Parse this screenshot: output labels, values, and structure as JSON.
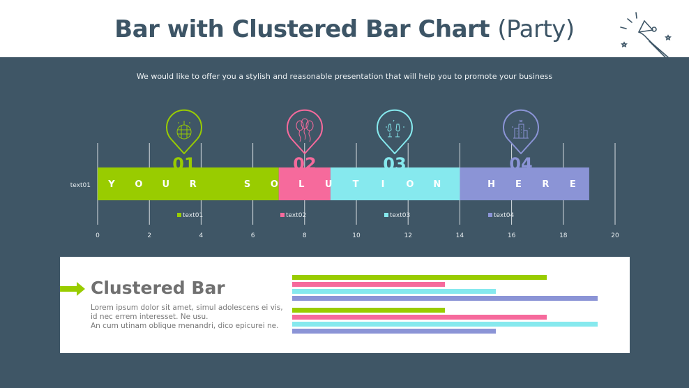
{
  "header": {
    "title_bold": "Bar with Clustered Bar Chart",
    "title_light": "(Party)",
    "icon": "party-horn-icon"
  },
  "subtitle": "We would like to offer you a stylish and reasonable presentation that will help you to promote your business",
  "colors": {
    "green": "#99cc00",
    "pink": "#f66a9c",
    "cyan": "#86e9ee",
    "purple": "#8b94d6",
    "background": "#3f5666"
  },
  "chart_data": [
    {
      "type": "bar",
      "orientation": "horizontal",
      "stacked": true,
      "categories": [
        "text01"
      ],
      "series": [
        {
          "name": "text01",
          "values": [
            7
          ]
        },
        {
          "name": "text02",
          "values": [
            2
          ]
        },
        {
          "name": "text03",
          "values": [
            5
          ]
        },
        {
          "name": "text04",
          "values": [
            5
          ]
        }
      ],
      "xlim": [
        0,
        20
      ],
      "xticks": [
        "0",
        "2",
        "4",
        "6",
        "8",
        "10",
        "12",
        "14",
        "16",
        "18",
        "20"
      ],
      "grid": true,
      "legend": "bottom",
      "bar_text": "YOUR SOLUTION HERE",
      "markers": [
        {
          "number": "01",
          "icon": "disco-ball-icon"
        },
        {
          "number": "02",
          "icon": "balloons-icon"
        },
        {
          "number": "03",
          "icon": "champagne-glasses-icon"
        },
        {
          "number": "04",
          "icon": "city-buildings-icon"
        }
      ]
    },
    {
      "type": "bar",
      "orientation": "horizontal",
      "clustered": true,
      "xlim": [
        0,
        6
      ],
      "groups": [
        {
          "values": [
            5,
            3,
            4,
            6
          ]
        },
        {
          "values": [
            3,
            5,
            6,
            4
          ]
        }
      ]
    }
  ],
  "panel": {
    "title": "Clustered Bar",
    "lines": [
      "Lorem ipsum dolor sit amet, simul adolescens ei vis,",
      "id nec errem interesset. Ne usu.",
      "An cum utinam oblique menandri, dico epicurei ne."
    ],
    "arrow_icon": "arrow-right-icon"
  }
}
